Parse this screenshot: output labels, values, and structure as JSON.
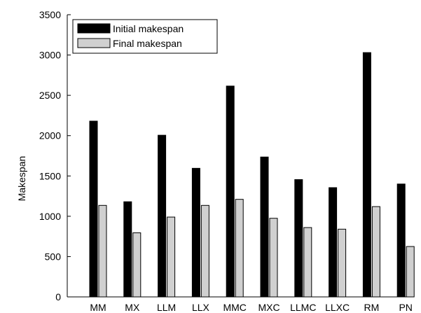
{
  "chart_data": {
    "type": "bar",
    "title": "",
    "xlabel": "",
    "ylabel": "Makespan",
    "ylim": [
      0,
      3500
    ],
    "yticks": [
      0,
      500,
      1000,
      1500,
      2000,
      2500,
      3000,
      3500
    ],
    "grid": false,
    "legend_position": "top-left",
    "categories": [
      "MM",
      "MX",
      "LLM",
      "LLX",
      "MMC",
      "MXC",
      "LLMC",
      "LLXC",
      "RM",
      "PN"
    ],
    "series": [
      {
        "name": "Initial makespan",
        "color": "#000000",
        "values": [
          2180,
          1180,
          2005,
          1595,
          2615,
          1735,
          1455,
          1355,
          3030,
          1400
        ]
      },
      {
        "name": "Final makespan",
        "color": "#d0d0d0",
        "values": [
          1135,
          795,
          990,
          1135,
          1210,
          975,
          860,
          840,
          1120,
          625
        ]
      }
    ]
  }
}
